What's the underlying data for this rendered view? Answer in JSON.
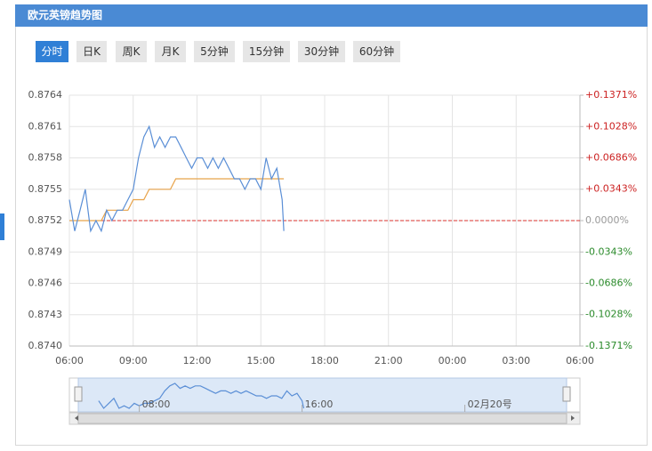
{
  "header": {
    "title": "欧元英镑趋势图"
  },
  "tabs": [
    "分时",
    "日K",
    "周K",
    "月K",
    "5分钟",
    "15分钟",
    "30分钟",
    "60分钟"
  ],
  "active_tab": 0,
  "chart_data": {
    "type": "line",
    "x": [
      6,
      6.25,
      6.5,
      6.75,
      7,
      7.25,
      7.5,
      7.75,
      8,
      8.25,
      8.5,
      8.75,
      9,
      9.25,
      9.5,
      9.75,
      10,
      10.25,
      10.5,
      10.75,
      11,
      11.25,
      11.5,
      11.75,
      12,
      12.25,
      12.5,
      12.75,
      13,
      13.25,
      13.5,
      13.75,
      14,
      14.25,
      14.5,
      14.75,
      15,
      15.25,
      15.5,
      15.75,
      16,
      16.08
    ],
    "series": [
      {
        "color": "#5b8fd6",
        "values": [
          0.8754,
          0.8751,
          0.8753,
          0.8755,
          0.8751,
          0.8752,
          0.8751,
          0.8753,
          0.8752,
          0.8753,
          0.8753,
          0.8754,
          0.8755,
          0.8758,
          0.876,
          0.8761,
          0.8759,
          0.876,
          0.8759,
          0.876,
          0.876,
          0.8759,
          0.8758,
          0.8757,
          0.8758,
          0.8758,
          0.8757,
          0.8758,
          0.8757,
          0.8758,
          0.8757,
          0.8756,
          0.8756,
          0.8755,
          0.8756,
          0.8756,
          0.8755,
          0.8758,
          0.8756,
          0.8757,
          0.8754,
          0.8751
        ]
      },
      {
        "color": "#e8a34a",
        "values": [
          0.8752,
          0.8752,
          0.8752,
          0.8752,
          0.8752,
          0.8752,
          0.8752,
          0.8753,
          0.8753,
          0.8753,
          0.8753,
          0.8753,
          0.8754,
          0.8754,
          0.8754,
          0.8755,
          0.8755,
          0.8755,
          0.8755,
          0.8755,
          0.8756,
          0.8756,
          0.8756,
          0.8756,
          0.8756,
          0.8756,
          0.8756,
          0.8756,
          0.8756,
          0.8756,
          0.8756,
          0.8756,
          0.8756,
          0.8756,
          0.8756,
          0.8756,
          0.8756,
          0.8756,
          0.8756,
          0.8756,
          0.8756,
          0.8756
        ]
      }
    ],
    "baseline": {
      "value": 0.8752,
      "color": "#d9302c"
    },
    "xlim": [
      6,
      30
    ],
    "xticks": [
      {
        "value": 6,
        "label": "06:00"
      },
      {
        "value": 9,
        "label": "09:00"
      },
      {
        "value": 12,
        "label": "12:00"
      },
      {
        "value": 15,
        "label": "15:00"
      },
      {
        "value": 18,
        "label": "18:00"
      },
      {
        "value": 21,
        "label": "21:00"
      },
      {
        "value": 24,
        "label": "00:00"
      },
      {
        "value": 27,
        "label": "03:00"
      },
      {
        "value": 30,
        "label": "06:00"
      }
    ],
    "ylim": [
      0.874,
      0.8764
    ],
    "yticks": [
      {
        "value": 0.874,
        "label": "0.8740"
      },
      0.8743,
      0.8746,
      0.8749,
      0.8752,
      0.8755,
      0.8758,
      0.8761,
      0.8764
    ],
    "y2lim": [
      -0.1371,
      0.1371
    ],
    "y2ticks": [
      {
        "value": -0.1371,
        "label": "-0.1371%"
      },
      {
        "value": -0.1028,
        "label": "-0.1028%"
      },
      {
        "value": -0.0686,
        "label": "-0.0686%"
      },
      {
        "value": -0.0343,
        "label": "-0.0343%"
      },
      {
        "value": 0,
        "label": "0.0000%"
      },
      {
        "value": 0.0343,
        "label": "+0.0343%"
      },
      {
        "value": 0.0686,
        "label": "+0.0686%"
      },
      {
        "value": 0.1028,
        "label": "+0.1028%"
      },
      {
        "value": 0.1371,
        "label": "+0.1371%"
      }
    ],
    "grid": true,
    "navigator": {
      "xlim": [
        5,
        29
      ],
      "xticks": [
        {
          "value": 8,
          "label": "08:00"
        },
        {
          "value": 16,
          "label": "16:00"
        },
        {
          "value": 24,
          "label": "02月20号"
        }
      ]
    }
  }
}
